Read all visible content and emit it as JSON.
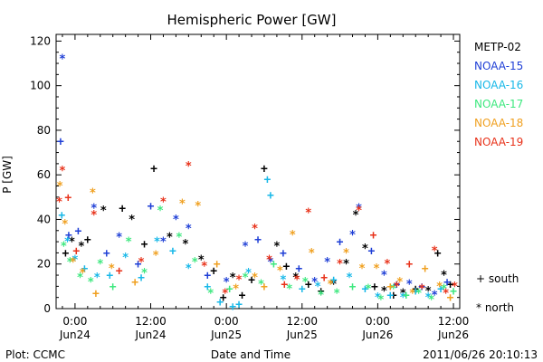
{
  "chart_data": {
    "type": "scatter",
    "title": "Hemispheric Power [GW]",
    "ylabel": "P [GW]",
    "xlabel": "Date and Time",
    "ylim": [
      0,
      123
    ],
    "xlim_hours": [
      -3,
      61
    ],
    "y_ticks": [
      "0",
      "20",
      "40",
      "60",
      "80",
      "100",
      "120"
    ],
    "x_ticks": [
      {
        "time": "0:00",
        "date": "Jun24"
      },
      {
        "time": "12:00",
        "date": "Jun24"
      },
      {
        "time": "0:00",
        "date": "Jun25"
      },
      {
        "time": "12:00",
        "date": "Jun25"
      },
      {
        "time": "0:00",
        "date": "Jun26"
      },
      {
        "time": "12:00",
        "date": "Jun26"
      }
    ],
    "legend": [
      {
        "name": "METP-02",
        "color": "#000000"
      },
      {
        "name": "NOAA-15",
        "color": "#1f3fd6"
      },
      {
        "name": "NOAA-16",
        "color": "#18b8e8"
      },
      {
        "name": "NOAA-17",
        "color": "#3ee87f"
      },
      {
        "name": "NOAA-18",
        "color": "#f0a020"
      },
      {
        "name": "NOAA-19",
        "color": "#e8321a"
      }
    ],
    "marker_legend": [
      {
        "symbol": "+",
        "label": "south"
      },
      {
        "symbol": "*",
        "label": "north"
      }
    ],
    "series": [
      {
        "name": "METP-02",
        "color": "#000000",
        "points": [
          [
            -1.5,
            25,
            "+"
          ],
          [
            -0.5,
            30,
            "*"
          ],
          [
            1,
            28,
            "*"
          ],
          [
            2,
            31,
            "+"
          ],
          [
            4.5,
            44,
            "*"
          ],
          [
            7.5,
            45,
            "+"
          ],
          [
            9,
            40,
            "*"
          ],
          [
            11,
            29,
            "+"
          ],
          [
            12.5,
            63,
            "+"
          ],
          [
            15,
            32,
            "*"
          ],
          [
            17.5,
            29,
            "*"
          ],
          [
            20,
            22,
            "*"
          ],
          [
            22,
            17,
            "+"
          ],
          [
            23.5,
            5,
            "+"
          ],
          [
            25,
            14,
            "*"
          ],
          [
            26.5,
            6,
            "+"
          ],
          [
            28,
            13,
            "+"
          ],
          [
            30,
            63,
            "+"
          ],
          [
            32,
            28,
            "*"
          ],
          [
            33.5,
            19,
            "+"
          ],
          [
            35,
            14,
            "*"
          ],
          [
            37,
            11,
            "+"
          ],
          [
            39,
            8,
            "+"
          ],
          [
            41,
            11,
            "*"
          ],
          [
            43,
            20,
            "*"
          ],
          [
            44.5,
            42,
            "*"
          ],
          [
            46,
            27,
            "*"
          ],
          [
            47.5,
            10,
            "+"
          ],
          [
            49,
            8,
            "*"
          ],
          [
            50.5,
            6,
            "+"
          ],
          [
            52,
            7,
            "*"
          ],
          [
            54,
            9,
            "+"
          ],
          [
            56,
            8,
            "*"
          ],
          [
            57.5,
            25,
            "+"
          ],
          [
            58.5,
            15,
            "*"
          ],
          [
            59.5,
            11,
            "+"
          ]
        ]
      },
      {
        "name": "NOAA-15",
        "color": "#1f3fd6",
        "points": [
          [
            -2.3,
            75,
            "+"
          ],
          [
            -2,
            112,
            "*"
          ],
          [
            -1,
            33,
            "+"
          ],
          [
            0.5,
            35,
            "+"
          ],
          [
            3,
            45,
            "*"
          ],
          [
            5,
            25,
            "+"
          ],
          [
            7,
            32,
            "*"
          ],
          [
            10,
            20,
            "+"
          ],
          [
            12,
            46,
            "+"
          ],
          [
            14,
            30,
            "*"
          ],
          [
            16,
            40,
            "*"
          ],
          [
            18,
            36,
            "*"
          ],
          [
            21,
            15,
            "+"
          ],
          [
            24,
            12,
            "*"
          ],
          [
            27,
            28,
            "*"
          ],
          [
            29,
            31,
            "+"
          ],
          [
            31,
            21,
            "*"
          ],
          [
            33,
            25,
            "+"
          ],
          [
            35.5,
            18,
            "+"
          ],
          [
            38,
            12,
            "*"
          ],
          [
            40,
            21,
            "*"
          ],
          [
            42,
            30,
            "+"
          ],
          [
            44,
            33,
            "*"
          ],
          [
            45,
            45,
            "*"
          ],
          [
            47,
            26,
            "+"
          ],
          [
            49,
            15,
            "*"
          ],
          [
            51,
            11,
            "+"
          ],
          [
            53,
            11,
            "*"
          ],
          [
            55,
            10,
            "+"
          ],
          [
            57,
            6,
            "*"
          ],
          [
            59,
            12,
            "+"
          ]
        ]
      },
      {
        "name": "NOAA-16",
        "color": "#18b8e8",
        "points": [
          [
            -2.1,
            42,
            "+"
          ],
          [
            -1.2,
            30,
            "*"
          ],
          [
            0,
            22,
            "*"
          ],
          [
            1.5,
            18,
            "+"
          ],
          [
            3.5,
            14,
            "*"
          ],
          [
            5.5,
            15,
            "+"
          ],
          [
            8,
            23,
            "*"
          ],
          [
            10.5,
            14,
            "+"
          ],
          [
            13,
            30,
            "*"
          ],
          [
            15.5,
            26,
            "+"
          ],
          [
            18,
            18,
            "*"
          ],
          [
            21,
            10,
            "+"
          ],
          [
            23,
            3,
            "+"
          ],
          [
            25,
            1,
            "+"
          ],
          [
            26,
            2,
            "+"
          ],
          [
            27.5,
            16,
            "*"
          ],
          [
            30.5,
            58,
            "+"
          ],
          [
            31,
            51,
            "+"
          ],
          [
            33,
            13,
            "*"
          ],
          [
            36,
            9,
            "+"
          ],
          [
            38.5,
            10,
            "*"
          ],
          [
            41,
            13,
            "+"
          ],
          [
            43.5,
            14,
            "*"
          ],
          [
            46,
            9,
            "+"
          ],
          [
            48,
            5,
            "*"
          ],
          [
            50,
            6,
            "+"
          ],
          [
            52,
            5,
            "*"
          ],
          [
            54,
            8,
            "+"
          ],
          [
            56,
            5,
            "*"
          ],
          [
            58,
            9,
            "+"
          ]
        ]
      },
      {
        "name": "NOAA-17",
        "color": "#3ee87f",
        "points": [
          [
            -1.8,
            28,
            "*"
          ],
          [
            -0.8,
            21,
            "*"
          ],
          [
            0.8,
            14,
            "*"
          ],
          [
            2.5,
            12,
            "*"
          ],
          [
            4,
            20,
            "*"
          ],
          [
            6,
            10,
            "+"
          ],
          [
            8.5,
            30,
            "*"
          ],
          [
            11,
            16,
            "*"
          ],
          [
            13.5,
            44,
            "*"
          ],
          [
            16.5,
            32,
            "*"
          ],
          [
            19,
            21,
            "*"
          ],
          [
            21.5,
            7,
            "*"
          ],
          [
            24.5,
            9,
            "+"
          ],
          [
            27,
            14,
            "*"
          ],
          [
            29.5,
            11,
            "*"
          ],
          [
            31.5,
            20,
            "+"
          ],
          [
            34,
            9,
            "*"
          ],
          [
            36.5,
            12,
            "*"
          ],
          [
            39,
            6,
            "*"
          ],
          [
            41.5,
            7,
            "*"
          ],
          [
            44,
            10,
            "+"
          ],
          [
            46.5,
            9,
            "*"
          ],
          [
            48.5,
            4,
            "*"
          ],
          [
            50.5,
            9,
            "*"
          ],
          [
            52.5,
            6,
            "+"
          ],
          [
            54.5,
            7,
            "*"
          ],
          [
            56.5,
            4,
            "*"
          ],
          [
            58.5,
            9,
            "*"
          ],
          [
            60,
            8,
            "+"
          ]
        ]
      },
      {
        "name": "NOAA-18",
        "color": "#f0a020",
        "points": [
          [
            -2.4,
            55,
            "*"
          ],
          [
            -1.6,
            38,
            "*"
          ],
          [
            -0.3,
            21,
            "*"
          ],
          [
            1.2,
            16,
            "*"
          ],
          [
            2.8,
            52,
            "*"
          ],
          [
            3.3,
            7,
            "+"
          ],
          [
            5.8,
            18,
            "*"
          ],
          [
            9.5,
            12,
            "+"
          ],
          [
            12.8,
            24,
            "*"
          ],
          [
            17,
            47,
            "*"
          ],
          [
            19.5,
            46,
            "*"
          ],
          [
            22.5,
            20,
            "+"
          ],
          [
            25.5,
            9,
            "*"
          ],
          [
            28.5,
            14,
            "*"
          ],
          [
            30,
            10,
            "+"
          ],
          [
            32.5,
            17,
            "*"
          ],
          [
            34.5,
            33,
            "*"
          ],
          [
            37.5,
            25,
            "*"
          ],
          [
            40.5,
            11,
            "*"
          ],
          [
            43,
            25,
            "*"
          ],
          [
            45.5,
            18,
            "*"
          ],
          [
            47.8,
            18,
            "*"
          ],
          [
            50,
            10,
            "+"
          ],
          [
            51.5,
            12,
            "*"
          ],
          [
            53.5,
            7,
            "*"
          ],
          [
            55.5,
            18,
            "+"
          ],
          [
            57.8,
            10,
            "*"
          ],
          [
            59.5,
            5,
            "+"
          ]
        ]
      },
      {
        "name": "NOAA-19",
        "color": "#e8321a",
        "points": [
          [
            -2.5,
            48,
            "*"
          ],
          [
            -2,
            62,
            "*"
          ],
          [
            -1.1,
            50,
            "+"
          ],
          [
            0.2,
            26,
            "+"
          ],
          [
            3,
            42,
            "*"
          ],
          [
            7,
            17,
            "+"
          ],
          [
            10.5,
            21,
            "*"
          ],
          [
            14,
            48,
            "*"
          ],
          [
            18,
            64,
            "*"
          ],
          [
            20.5,
            19,
            "*"
          ],
          [
            23.8,
            7,
            "*"
          ],
          [
            26,
            13,
            "*"
          ],
          [
            28.5,
            36,
            "*"
          ],
          [
            30.8,
            22,
            "*"
          ],
          [
            33.2,
            11,
            "+"
          ],
          [
            35.2,
            13,
            "*"
          ],
          [
            37,
            43,
            "*"
          ],
          [
            39.5,
            14,
            "+"
          ],
          [
            42,
            20,
            "*"
          ],
          [
            45,
            44,
            "*"
          ],
          [
            47.3,
            33,
            "+"
          ],
          [
            49.5,
            20,
            "*"
          ],
          [
            51,
            10,
            "*"
          ],
          [
            53,
            20,
            "+"
          ],
          [
            55,
            9,
            "*"
          ],
          [
            57,
            26,
            "*"
          ],
          [
            58.8,
            7,
            "*"
          ],
          [
            60.2,
            10,
            "*"
          ]
        ]
      }
    ]
  },
  "footer": {
    "left": "Plot: CCMC",
    "timestamp": "2011/06/26 20:10:13"
  }
}
